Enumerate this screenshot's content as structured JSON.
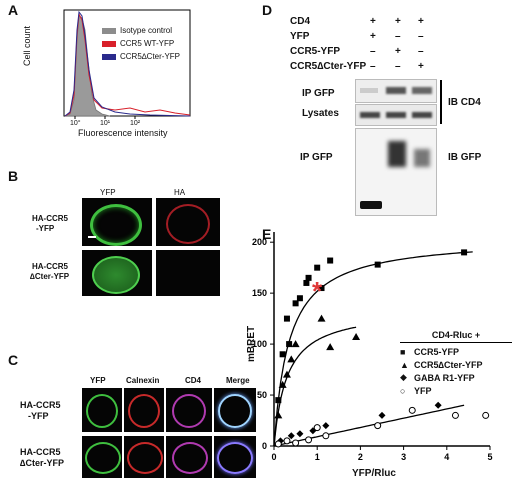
{
  "panelA": {
    "letter": "A",
    "ylabel": "Cell count",
    "xlabel": "Fluorescence intensity",
    "ticks": [
      "10°",
      "10¹",
      "10²"
    ],
    "legend": [
      {
        "label": "Isotype control",
        "color": "#8c8c8c"
      },
      {
        "label": "CCR5 WT-YFP",
        "color": "#d8202a"
      },
      {
        "label": "CCR5∆Cter-YFP",
        "color": "#2a2a8c"
      }
    ]
  },
  "panelB": {
    "letter": "B",
    "col_headers": [
      "YFP",
      "HA"
    ],
    "rows": [
      {
        "label1": "HA-CCR5",
        "label2": "-YFP"
      },
      {
        "label1": "HA-CCR5",
        "label2": "∆Cter-YFP"
      }
    ]
  },
  "panelC": {
    "letter": "C",
    "col_headers": [
      "YFP",
      "Calnexin",
      "CD4",
      "Merge"
    ],
    "rows": [
      {
        "label1": "HA-CCR5",
        "label2": "-YFP"
      },
      {
        "label1": "HA-CCR5",
        "label2": "∆Cter-YFP"
      }
    ]
  },
  "panelD": {
    "letter": "D",
    "conditions": [
      {
        "label": "CD4",
        "marks": [
          "+",
          "+",
          "+"
        ]
      },
      {
        "label": "YFP",
        "marks": [
          "+",
          "–",
          "–"
        ]
      },
      {
        "label": "CCR5-YFP",
        "marks": [
          "–",
          "+",
          "–"
        ]
      },
      {
        "label": "CCR5∆Cter-YFP",
        "marks": [
          "–",
          "–",
          "+"
        ]
      }
    ],
    "blot_labels": [
      "IP GFP",
      "Lysates",
      "IP GFP"
    ],
    "ib_labels": [
      "IB CD4",
      "IB GFP"
    ]
  },
  "panelE": {
    "letter": "E",
    "legend_title": "CD4-Rluc +",
    "legend": [
      {
        "label": "CCR5-YFP",
        "marker": "■"
      },
      {
        "label": "CCR5∆Cter-YFP",
        "marker": "▲"
      },
      {
        "label": "GABA   R1-YFP",
        "marker": "◆"
      },
      {
        "label": "YFP",
        "marker": "○"
      }
    ],
    "asterisk": "*"
  },
  "chart_data": {
    "type": "scatter",
    "title": "",
    "xlabel": "YFP/Rluc",
    "ylabel": "mBRET",
    "xlim": [
      0,
      5
    ],
    "ylim": [
      0,
      210
    ],
    "xticks": [
      0,
      1,
      2,
      3,
      4,
      5
    ],
    "yticks": [
      0,
      50,
      100,
      150,
      200
    ],
    "grid": false,
    "legend_position": "right",
    "series": [
      {
        "name": "CCR5-YFP",
        "marker": "square",
        "color": "#000000",
        "x": [
          0.1,
          0.2,
          0.3,
          0.35,
          0.5,
          0.6,
          0.75,
          0.8,
          1.0,
          1.1,
          1.3,
          2.4,
          4.4
        ],
        "y": [
          45,
          90,
          125,
          100,
          140,
          145,
          160,
          165,
          175,
          155,
          182,
          178,
          190
        ]
      },
      {
        "name": "CCR5∆Cter-YFP",
        "marker": "triangle",
        "color": "#000000",
        "x": [
          0.1,
          0.2,
          0.3,
          0.4,
          0.5,
          1.1,
          1.3,
          1.9
        ],
        "y": [
          30,
          60,
          70,
          85,
          100,
          125,
          97,
          107
        ]
      },
      {
        "name": "GABA   R1-YFP",
        "marker": "diamond",
        "color": "#000000",
        "x": [
          0.15,
          0.4,
          0.6,
          0.9,
          1.0,
          1.2,
          2.5,
          3.8
        ],
        "y": [
          5,
          10,
          12,
          15,
          18,
          20,
          30,
          40
        ]
      },
      {
        "name": "YFP",
        "marker": "circle-open",
        "color": "#000000",
        "x": [
          0.1,
          0.3,
          0.5,
          0.8,
          1.0,
          1.2,
          2.4,
          3.2,
          4.2,
          4.9
        ],
        "y": [
          2,
          5,
          3,
          6,
          18,
          10,
          20,
          35,
          30,
          30
        ]
      }
    ]
  }
}
